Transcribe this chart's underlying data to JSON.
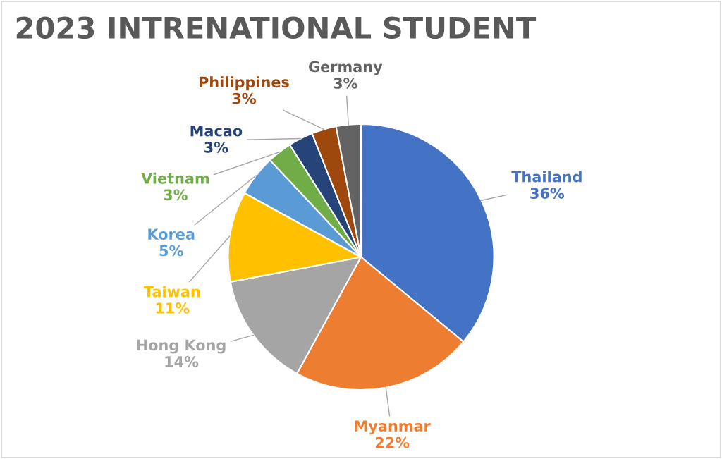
{
  "chart_data": {
    "type": "pie",
    "title": "2023 INTRENATIONAL STUDENT",
    "categories": [
      "Thailand",
      "Myanmar",
      "Hong Kong",
      "Taiwan",
      "Korea",
      "Vietnam",
      "Macao",
      "Philippines",
      "Germany"
    ],
    "values": [
      36,
      22,
      14,
      11,
      5,
      3,
      3,
      3,
      3
    ],
    "value_labels": [
      "36%",
      "22%",
      "14%",
      "11%",
      "5%",
      "3%",
      "3%",
      "3%",
      "3%"
    ],
    "colors": [
      "#4472c4",
      "#ed7d31",
      "#a5a5a5",
      "#ffc000",
      "#5b9bd5",
      "#70ad47",
      "#264478",
      "#9e480e",
      "#636363"
    ],
    "legend": false
  }
}
